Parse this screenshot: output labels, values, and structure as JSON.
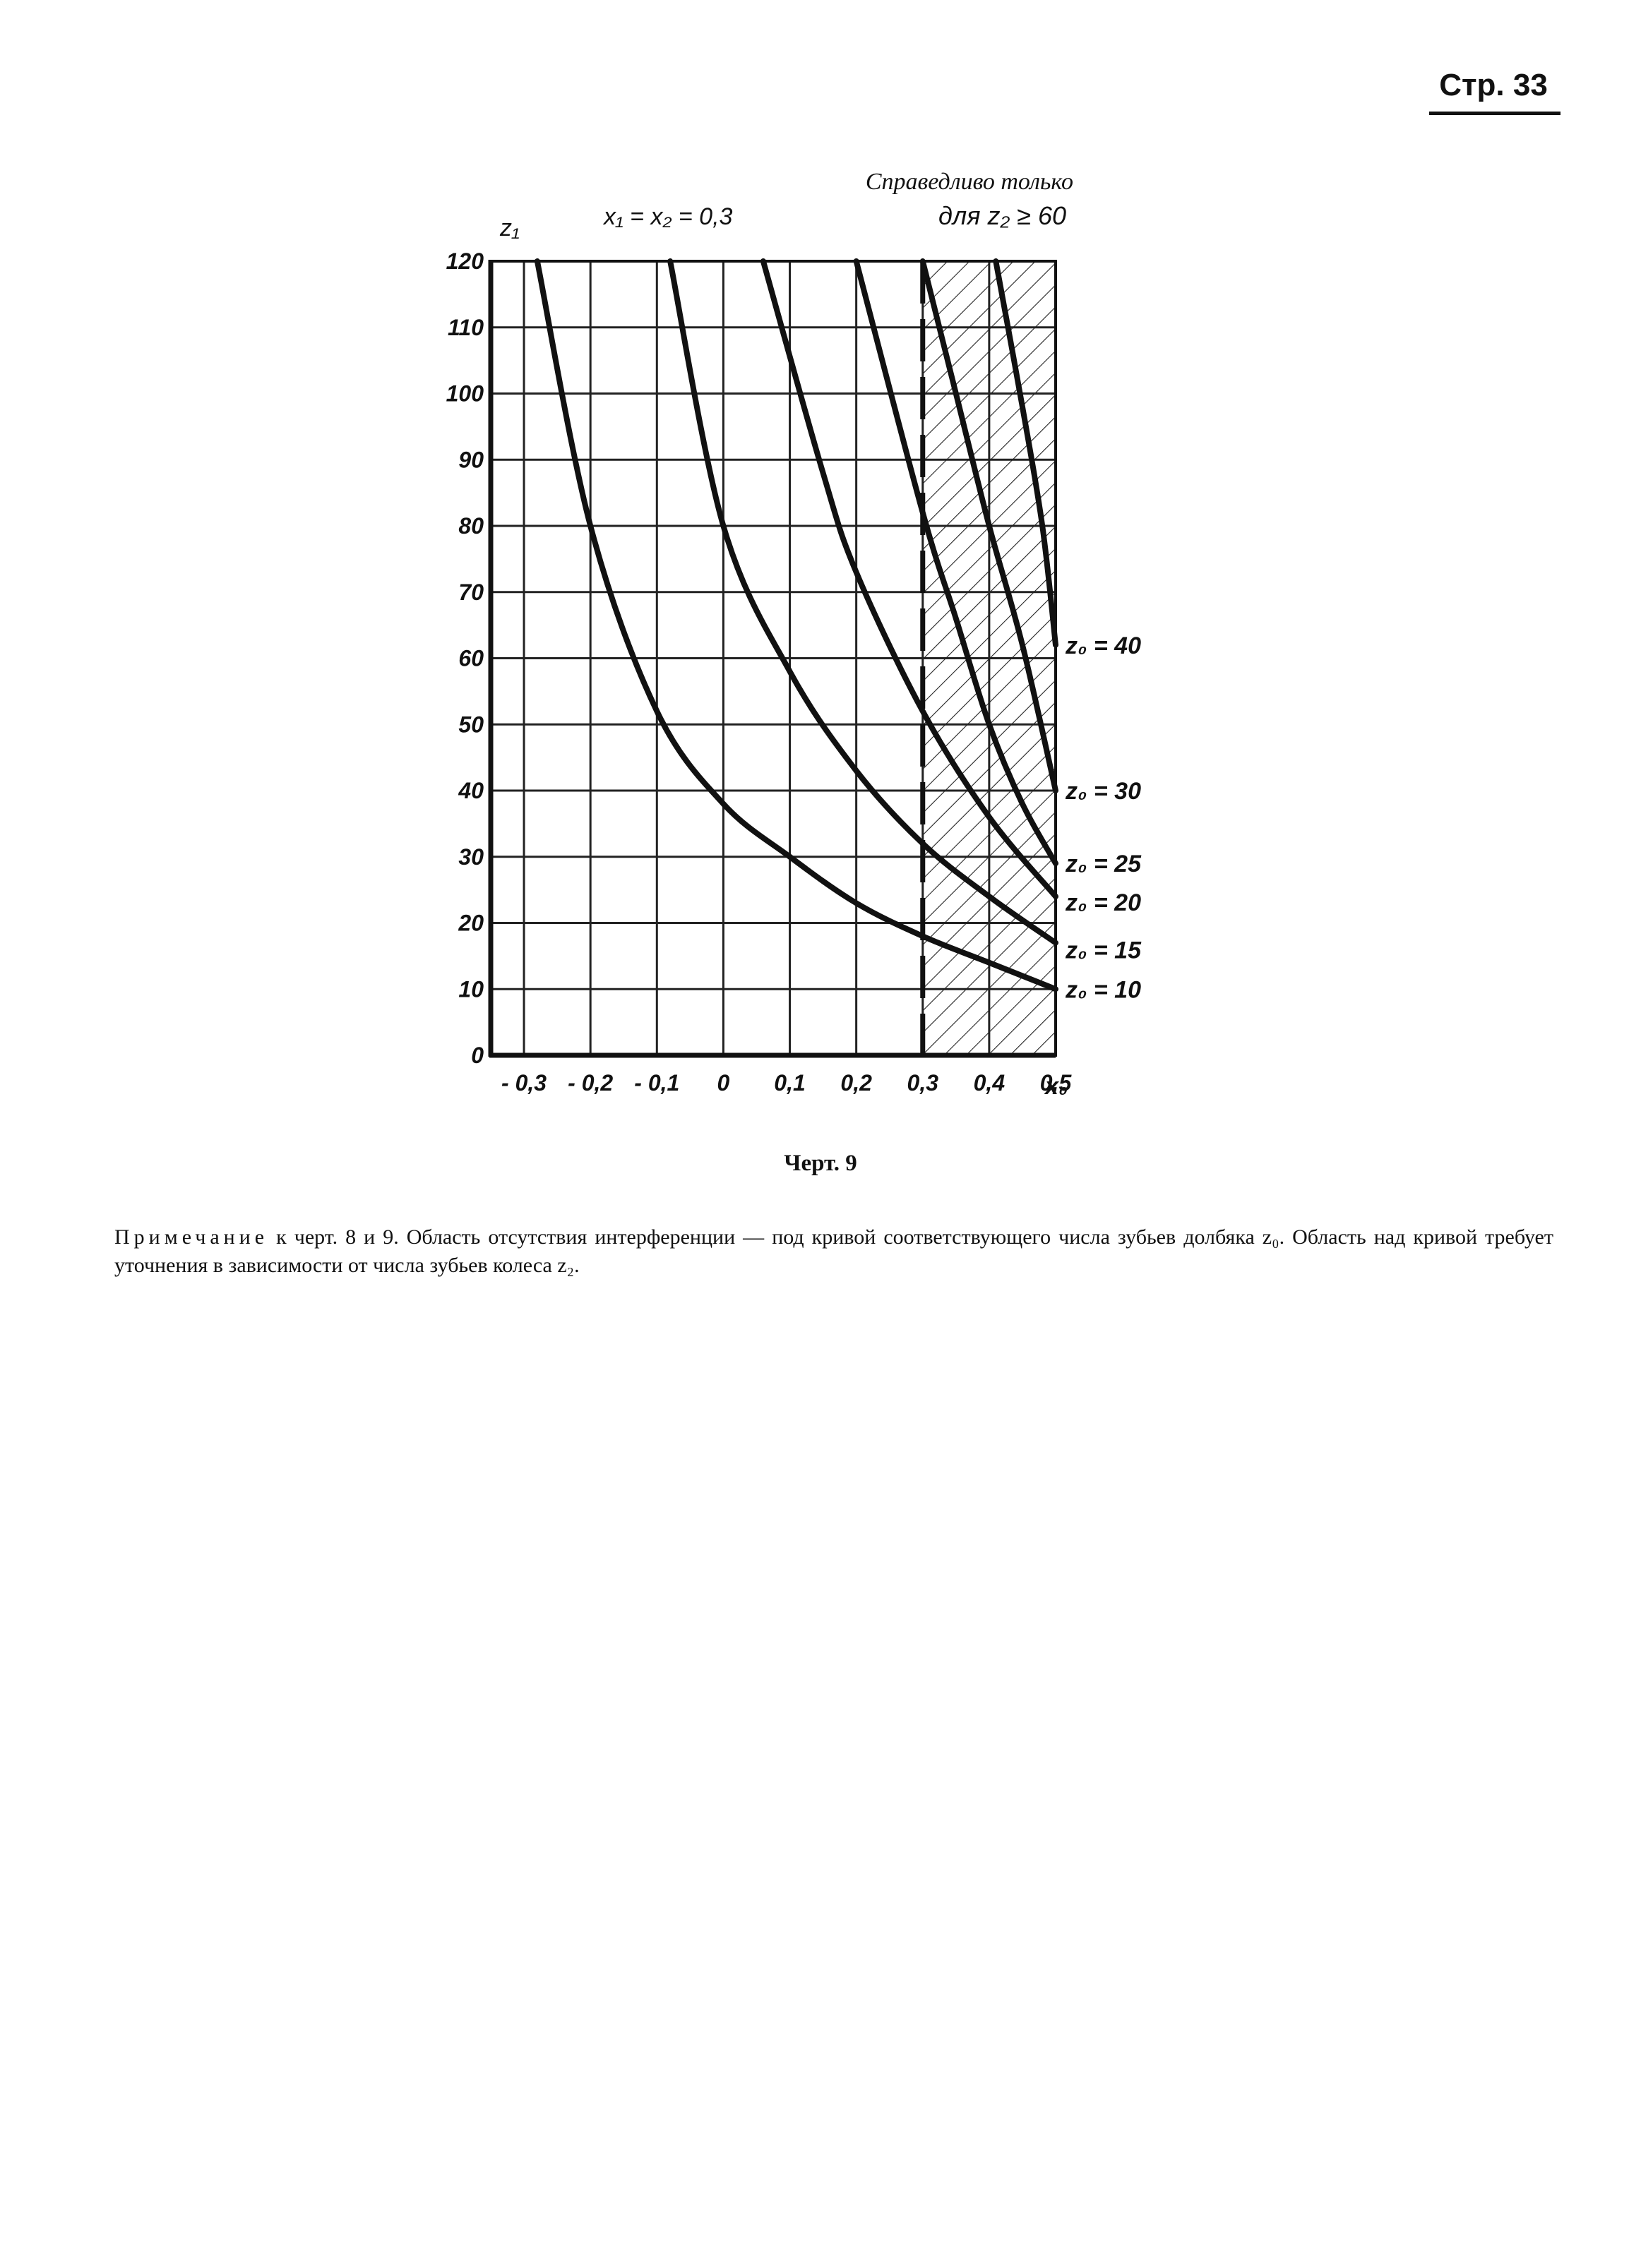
{
  "page": {
    "number": "Стр. 33"
  },
  "figure": {
    "caption": "Черт. 9",
    "top_left_annotation": "x₁ = x₂ = 0,3",
    "validity_note_line1": "Справедливо только",
    "validity_note_line2": "для z₂ ≥ 60"
  },
  "note": {
    "heading": "Примечание",
    "text": " к черт. 8 и 9. Область отсутствия интерференции — под кривой соответствующего числа зубьев долбяка z₀. Область над кривой требует уточнения в зависимости от числа зубьев колеса z₂."
  },
  "chart_data": {
    "type": "line",
    "xlabel": "x₀",
    "ylabel": "z₁",
    "xlim": [
      -0.35,
      0.5
    ],
    "ylim": [
      0,
      120
    ],
    "x_ticks": [
      -0.3,
      -0.2,
      -0.1,
      0,
      0.1,
      0.2,
      0.3,
      0.4,
      0.5
    ],
    "x_tick_labels": [
      "- 0,3",
      "- 0,2",
      "- 0,1",
      "0",
      "0,1",
      "0,2",
      "0,3",
      "0,4",
      "0,5"
    ],
    "y_ticks": [
      0,
      10,
      20,
      30,
      40,
      50,
      60,
      70,
      80,
      90,
      100,
      110,
      120
    ],
    "y_tick_labels": [
      "0",
      "10",
      "20",
      "30",
      "40",
      "50",
      "60",
      "70",
      "80",
      "90",
      "100",
      "110",
      "120"
    ],
    "grid": true,
    "hatched_region_x": [
      0.3,
      0.5
    ],
    "dashed_line_x": 0.3,
    "series": [
      {
        "name": "z₀ = 10",
        "points": [
          [
            -0.28,
            120
          ],
          [
            -0.2,
            80
          ],
          [
            -0.1,
            52
          ],
          [
            0,
            38
          ],
          [
            0.1,
            30
          ],
          [
            0.2,
            23
          ],
          [
            0.3,
            18
          ],
          [
            0.4,
            14
          ],
          [
            0.5,
            10
          ]
        ]
      },
      {
        "name": "z₀ = 15",
        "points": [
          [
            -0.08,
            120
          ],
          [
            0,
            80
          ],
          [
            0.1,
            58
          ],
          [
            0.2,
            43
          ],
          [
            0.3,
            32
          ],
          [
            0.4,
            24
          ],
          [
            0.5,
            17
          ]
        ]
      },
      {
        "name": "z₀ = 20",
        "points": [
          [
            0.06,
            120
          ],
          [
            0.15,
            88
          ],
          [
            0.2,
            73
          ],
          [
            0.3,
            52
          ],
          [
            0.4,
            36
          ],
          [
            0.5,
            24
          ]
        ]
      },
      {
        "name": "z₀ = 25",
        "points": [
          [
            0.2,
            120
          ],
          [
            0.3,
            82
          ],
          [
            0.35,
            66
          ],
          [
            0.4,
            50
          ],
          [
            0.45,
            38
          ],
          [
            0.5,
            29
          ]
        ]
      },
      {
        "name": "z₀ = 30",
        "points": [
          [
            0.3,
            120
          ],
          [
            0.35,
            100
          ],
          [
            0.4,
            80
          ],
          [
            0.45,
            62
          ],
          [
            0.5,
            40
          ]
        ]
      },
      {
        "name": "z₀ = 40",
        "points": [
          [
            0.41,
            120
          ],
          [
            0.45,
            98
          ],
          [
            0.48,
            80
          ],
          [
            0.5,
            62
          ]
        ]
      }
    ]
  }
}
